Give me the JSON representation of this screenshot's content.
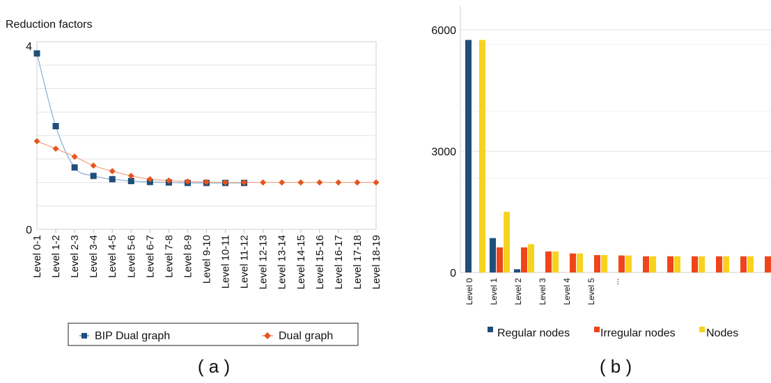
{
  "chart_data": [
    {
      "id": "a",
      "type": "line",
      "panel_label": "( a )",
      "ylabel": "Reduction factors",
      "ylim": [
        0,
        4
      ],
      "y_tick_labels": [
        "0",
        "4"
      ],
      "grid": true,
      "legend_placement": "bottom",
      "categories": [
        "Level 0-1",
        "Level 1-2",
        "Level 2-3",
        "Level 3-4",
        "Level 4-5",
        "Level 5-6",
        "Level 6-7",
        "Level 7-8",
        "Level 8-9",
        "Level 9-10",
        "Level 10-11",
        "Level 11-12",
        "Level 12-13",
        "Level 13-14",
        "Level 14-15",
        "Level 15-16",
        "Level 16-17",
        "Level 17-18",
        "Level 18-19"
      ],
      "series": [
        {
          "name": "BIP Dual graph",
          "color": "#1f4e79",
          "marker": "square",
          "values": [
            3.75,
            2.2,
            1.32,
            1.14,
            1.07,
            1.03,
            1.01,
            1.0,
            0.99,
            0.99,
            0.99,
            0.99,
            null,
            null,
            null,
            null,
            null,
            null,
            null
          ]
        },
        {
          "name": "Dual graph",
          "color": "#e8541e",
          "marker": "diamond",
          "values": [
            1.88,
            1.72,
            1.55,
            1.36,
            1.24,
            1.14,
            1.07,
            1.04,
            1.02,
            1.01,
            1.0,
            1.0,
            1.0,
            1.0,
            1.0,
            1.0,
            1.0,
            1.0,
            1.0
          ]
        }
      ]
    },
    {
      "id": "b",
      "type": "bar",
      "panel_label": "( b )",
      "ylim": [
        0,
        6600
      ],
      "y_ticks": [
        0,
        3000,
        6000
      ],
      "y_tick_labels": [
        "0",
        "3000",
        "6000"
      ],
      "grid": true,
      "legend_placement": "bottom",
      "categories": [
        "Level 0",
        "Level 1",
        "Level 2",
        "Level 3",
        "Level 4",
        "Level 5",
        "...",
        "",
        "",
        "",
        "",
        "",
        "",
        ""
      ],
      "series": [
        {
          "name": "Regular nodes",
          "color": "#1f4e79",
          "values": [
            5750,
            850,
            80,
            0,
            0,
            0,
            0,
            0,
            0,
            0,
            0,
            0,
            0,
            0
          ]
        },
        {
          "name": "Irregular nodes",
          "color": "#f0441c",
          "values": [
            0,
            620,
            620,
            520,
            470,
            430,
            420,
            400,
            400,
            400,
            400,
            400,
            400,
            400
          ]
        },
        {
          "name": "Nodes",
          "color": "#f7d21f",
          "values": [
            5750,
            1500,
            700,
            520,
            470,
            430,
            420,
            400,
            400,
            400,
            400,
            400,
            400,
            400
          ]
        }
      ]
    }
  ]
}
